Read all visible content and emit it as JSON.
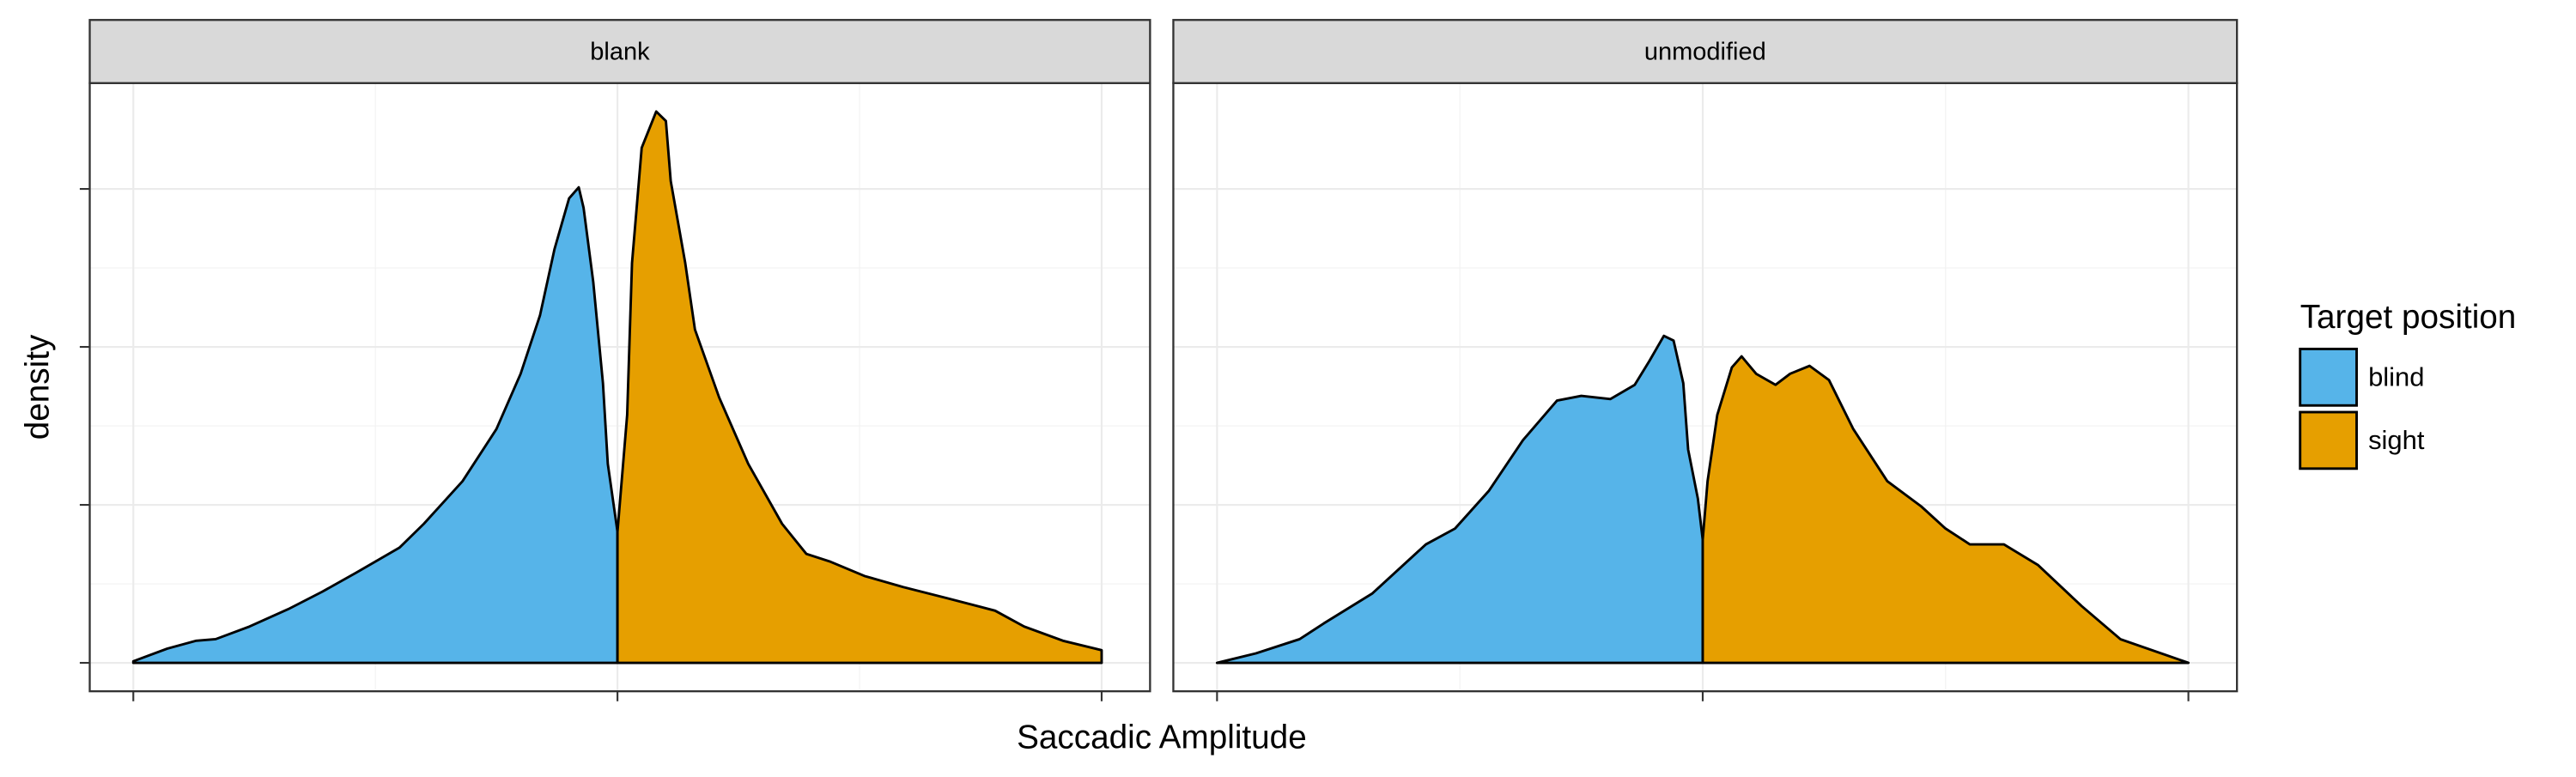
{
  "chart_data": {
    "type": "area",
    "x_label": "Saccadic Amplitude",
    "y_label": "density",
    "legend_title": "Target position",
    "xlim": [
      -1.09,
      1.1
    ],
    "ylim": [
      -0.18,
      3.67
    ],
    "xticks": [
      -1,
      0,
      1
    ],
    "yticks": [
      0,
      1,
      2,
      3
    ],
    "grid": true,
    "legend_position": "right",
    "facets": [
      {
        "title": "blank",
        "series": [
          {
            "name": "blind",
            "color": "#56B4E9",
            "x": [
              -1.0,
              -0.93,
              -0.87,
              -0.83,
              -0.76,
              -0.68,
              -0.61,
              -0.54,
              -0.45,
              -0.4,
              -0.32,
              -0.25,
              -0.2,
              -0.16,
              -0.13,
              -0.1,
              -0.08,
              -0.07,
              -0.05,
              -0.03,
              -0.02,
              0
            ],
            "values": [
              0.01,
              0.09,
              0.14,
              0.15,
              0.23,
              0.34,
              0.45,
              0.57,
              0.73,
              0.88,
              1.15,
              1.48,
              1.83,
              2.2,
              2.62,
              2.94,
              3.01,
              2.88,
              2.41,
              1.77,
              1.26,
              0.83
            ]
          },
          {
            "name": "sight",
            "color": "#E69F00",
            "x": [
              0,
              0.02,
              0.03,
              0.05,
              0.08,
              0.1,
              0.11,
              0.14,
              0.16,
              0.21,
              0.27,
              0.34,
              0.39,
              0.44,
              0.51,
              0.59,
              0.68,
              0.78,
              0.84,
              0.92,
              1.0
            ],
            "values": [
              0.83,
              1.57,
              2.53,
              3.26,
              3.49,
              3.43,
              3.05,
              2.53,
              2.11,
              1.68,
              1.26,
              0.88,
              0.69,
              0.64,
              0.55,
              0.48,
              0.41,
              0.33,
              0.23,
              0.14,
              0.08
            ]
          }
        ]
      },
      {
        "title": "unmodified",
        "series": [
          {
            "name": "blind",
            "color": "#56B4E9",
            "x": [
              -1.0,
              -0.92,
              -0.83,
              -0.78,
              -0.68,
              -0.57,
              -0.51,
              -0.44,
              -0.37,
              -0.3,
              -0.25,
              -0.19,
              -0.14,
              -0.11,
              -0.08,
              -0.06,
              -0.04,
              -0.03,
              -0.01,
              0
            ],
            "values": [
              0,
              0.06,
              0.15,
              0.25,
              0.44,
              0.75,
              0.85,
              1.09,
              1.41,
              1.66,
              1.69,
              1.67,
              1.76,
              1.91,
              2.07,
              2.04,
              1.77,
              1.35,
              1.04,
              0.78
            ]
          },
          {
            "name": "sight",
            "color": "#E69F00",
            "x": [
              0,
              0.01,
              0.03,
              0.06,
              0.08,
              0.11,
              0.15,
              0.18,
              0.22,
              0.26,
              0.31,
              0.38,
              0.45,
              0.5,
              0.55,
              0.62,
              0.69,
              0.78,
              0.86,
              1.0
            ],
            "values": [
              0.78,
              1.15,
              1.57,
              1.87,
              1.94,
              1.83,
              1.76,
              1.83,
              1.88,
              1.79,
              1.48,
              1.15,
              0.99,
              0.85,
              0.75,
              0.75,
              0.62,
              0.36,
              0.15,
              0
            ]
          }
        ]
      }
    ]
  }
}
